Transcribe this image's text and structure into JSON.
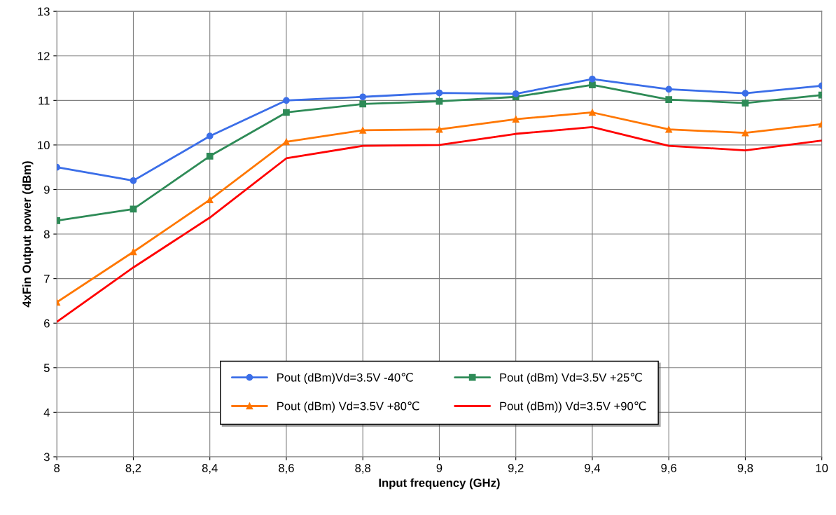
{
  "chart_data": {
    "type": "line",
    "xlabel": "Input frequency (GHz)",
    "ylabel": "4xFin Output power (dBm)",
    "x": [
      8,
      8.2,
      8.4,
      8.6,
      8.8,
      9,
      9.2,
      9.4,
      9.6,
      9.8,
      10
    ],
    "series": [
      {
        "name": "Pout (dBm)Vd=3.5V -40℃",
        "color": "#3b6ee8",
        "marker": "circle",
        "values": [
          9.5,
          9.2,
          10.2,
          11.0,
          11.08,
          11.17,
          11.15,
          11.48,
          11.25,
          11.16,
          11.33
        ]
      },
      {
        "name": "Pout (dBm) Vd=3.5V +25℃",
        "color": "#2e8b57",
        "marker": "square",
        "values": [
          8.3,
          8.56,
          9.75,
          10.73,
          10.92,
          10.98,
          11.08,
          11.35,
          11.02,
          10.94,
          11.12
        ]
      },
      {
        "name": "Pout (dBm) Vd=3.5V +80℃",
        "color": "#ff7700",
        "marker": "triangle",
        "values": [
          6.47,
          7.6,
          8.77,
          10.07,
          10.33,
          10.35,
          10.58,
          10.73,
          10.35,
          10.27,
          10.47
        ]
      },
      {
        "name": "Pout (dBm)) Vd=3.5V +90℃",
        "color": "#ff0000",
        "marker": "none",
        "values": [
          6.03,
          7.25,
          8.37,
          9.7,
          9.98,
          10.0,
          10.25,
          10.4,
          9.98,
          9.88,
          10.1
        ]
      }
    ],
    "xlim": [
      8,
      10
    ],
    "ylim": [
      3,
      13
    ],
    "xticks": [
      8,
      {
        "value": 8.2,
        "label": "8,2"
      },
      {
        "value": 8.4,
        "label": "8,4"
      },
      {
        "value": 8.6,
        "label": "8,6"
      },
      {
        "value": 8.8,
        "label": "8,8"
      },
      9,
      {
        "value": 9.2,
        "label": "9,2"
      },
      {
        "value": 9.4,
        "label": "9,4"
      },
      {
        "value": 9.6,
        "label": "9,6"
      },
      {
        "value": 9.8,
        "label": "9,8"
      },
      10
    ],
    "yticks": [
      3,
      4,
      5,
      6,
      7,
      8,
      9,
      10,
      11,
      12,
      13
    ],
    "grid": true,
    "legend": "bottom",
    "line_style": "solid"
  }
}
